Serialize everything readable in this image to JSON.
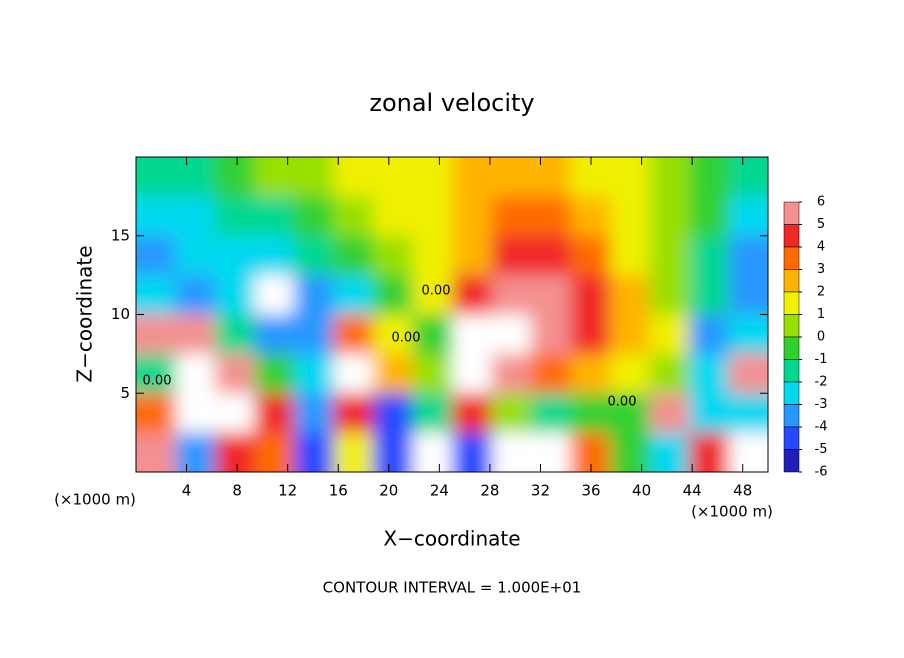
{
  "chart_data": {
    "type": "heatmap",
    "title": "zonal velocity",
    "x_label": "X−coordinate",
    "y_label": "Z−coordinate",
    "x_unit": "(×1000 m)",
    "footer": "CONTOUR INTERVAL = 1.000E+01",
    "contour_labels": [
      "0.00",
      "0.00",
      "0.00",
      "0.00"
    ],
    "xlim": [
      0,
      50
    ],
    "ylim": [
      0,
      20
    ],
    "xticks": [
      4,
      8,
      12,
      16,
      20,
      24,
      28,
      32,
      36,
      40,
      44,
      48
    ],
    "yticks": [
      5,
      10,
      15
    ],
    "x": [
      0,
      3.125,
      6.25,
      9.375,
      12.5,
      15.625,
      18.75,
      21.875,
      25,
      28.125,
      31.25,
      34.375,
      37.5,
      40.625,
      43.75,
      46.875,
      50
    ],
    "y": [
      20,
      17.5,
      15,
      12.5,
      10,
      7.5,
      5,
      2.5,
      0
    ],
    "z": [
      [
        -2,
        -2,
        -1,
        0,
        0,
        1,
        1,
        1,
        2,
        2,
        2,
        1,
        1,
        0,
        -1,
        -2
      ],
      [
        -3,
        -3,
        -2,
        -2,
        -1,
        0,
        1,
        1,
        2,
        3,
        3,
        2,
        1,
        0,
        -1,
        -3
      ],
      [
        -4,
        -3,
        -3,
        -3,
        -2,
        -1,
        0,
        1,
        2,
        4,
        4,
        3,
        1,
        0,
        -2,
        -4
      ],
      [
        -3,
        -4,
        -3,
        7,
        -4,
        -3,
        -1,
        1,
        4,
        5,
        5,
        4,
        2,
        0,
        -2,
        -4
      ],
      [
        5,
        6,
        -2,
        -4,
        -4,
        3,
        1,
        -1,
        7,
        8,
        5,
        4,
        2,
        1,
        -4,
        -3
      ],
      [
        -2,
        8,
        6,
        -1,
        -3,
        7,
        2,
        0,
        8,
        6,
        3,
        2,
        1,
        0,
        -3,
        6
      ],
      [
        3,
        8,
        7,
        4,
        -4,
        4,
        -5,
        -2,
        4,
        0,
        -2,
        -1,
        -1,
        5,
        -3,
        -3
      ],
      [
        6,
        -4,
        4,
        3,
        -5,
        1,
        -5,
        7,
        -5,
        8,
        8,
        3,
        -1,
        -3,
        4,
        8
      ]
    ],
    "colorbar_ticks": [
      6,
      5,
      4,
      3,
      2,
      1,
      0,
      -1,
      -2,
      -3,
      -4,
      -5,
      -6
    ],
    "colors": [
      "#f49090",
      "#f02828",
      "#ff6a00",
      "#ffb400",
      "#f0f000",
      "#98e000",
      "#30d030",
      "#00d890",
      "#00d8f0",
      "#2898ff",
      "#2848ff",
      "#2020b8"
    ],
    "over_color": "#ffffff"
  }
}
